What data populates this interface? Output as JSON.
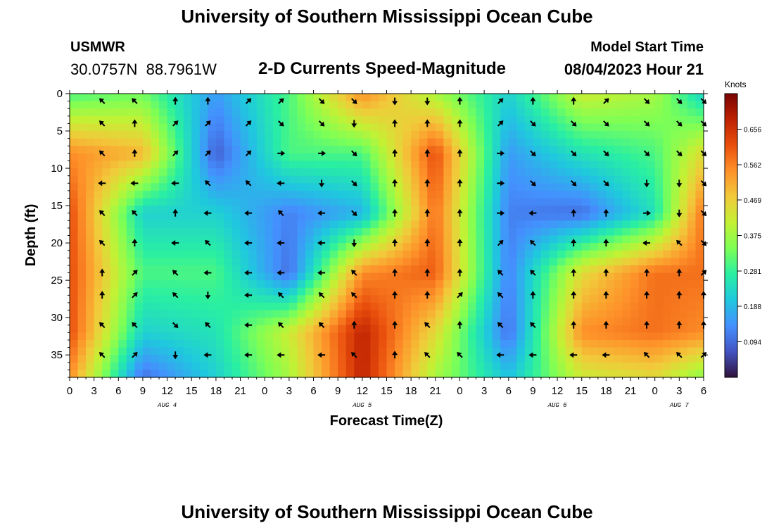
{
  "header": {
    "title": "University of Southern Mississippi Ocean Cube",
    "station": "USMWR",
    "coords": "30.0757N  88.7961W",
    "subtitle": "2-D Currents Speed-Magnitude",
    "model_label": "Model Start Time",
    "model_time": "08/04/2023 Hour 21"
  },
  "footer": {
    "title": "University of Southern Mississippi Ocean Cube"
  },
  "chart_data": {
    "type": "heatmap",
    "title": "2-D Currents Speed-Magnitude",
    "xlabel": "Forecast Time(Z)",
    "ylabel": "Depth (ft)",
    "x_unit": "hours since Aug 4 00Z",
    "xlim": [
      0,
      78
    ],
    "ylim": [
      38,
      0
    ],
    "x_ticks": [
      0,
      3,
      6,
      9,
      12,
      15,
      18,
      21,
      24,
      27,
      30,
      33,
      36,
      39,
      42,
      45,
      48,
      51,
      54,
      57,
      60,
      63,
      66,
      69,
      72,
      75,
      78
    ],
    "x_tick_labels": [
      "0",
      "3",
      "6",
      "9",
      "12",
      "15",
      "18",
      "21",
      "0",
      "3",
      "6",
      "9",
      "12",
      "15",
      "18",
      "21",
      "0",
      "3",
      "6",
      "9",
      "12",
      "15",
      "18",
      "21",
      "0",
      "3",
      "6"
    ],
    "date_labels": [
      {
        "x": 12,
        "text": "AUG 4"
      },
      {
        "x": 36,
        "text": "AUG 5"
      },
      {
        "x": 60,
        "text": "AUG 6"
      },
      {
        "x": 75,
        "text": "AUG 7"
      }
    ],
    "y_ticks": [
      0,
      5,
      10,
      15,
      20,
      25,
      30,
      35
    ],
    "colorbar": {
      "label": "Knots",
      "min": 0.0,
      "max": 0.75,
      "ticks": [
        0.094,
        0.188,
        0.281,
        0.375,
        0.469,
        0.562,
        0.656
      ],
      "tick_labels": [
        "0.094",
        "0.188",
        "0.281",
        "0.375",
        "0.469",
        "0.562",
        "0.656"
      ],
      "colormap": [
        "#30123b",
        "#4454c4",
        "#4490fe",
        "#1fc8de",
        "#29efa2",
        "#7eff55",
        "#c3f134",
        "#f1ca3a",
        "#fe922a",
        "#ea4f0d",
        "#be2102",
        "#7a0403"
      ]
    },
    "grid_x": [
      0,
      9,
      18,
      27,
      36,
      45,
      54,
      63,
      72,
      78
    ],
    "grid_y": [
      0,
      8,
      16,
      24,
      32,
      38
    ],
    "speed_knots": [
      [
        0.3,
        0.33,
        0.15,
        0.3,
        0.55,
        0.38,
        0.22,
        0.42,
        0.38,
        0.22
      ],
      [
        0.55,
        0.5,
        0.08,
        0.3,
        0.3,
        0.62,
        0.15,
        0.25,
        0.3,
        0.45
      ],
      [
        0.62,
        0.22,
        0.22,
        0.12,
        0.18,
        0.58,
        0.12,
        0.1,
        0.25,
        0.58
      ],
      [
        0.62,
        0.3,
        0.3,
        0.1,
        0.55,
        0.6,
        0.12,
        0.45,
        0.58,
        0.58
      ],
      [
        0.62,
        0.22,
        0.25,
        0.42,
        0.68,
        0.45,
        0.1,
        0.55,
        0.58,
        0.55
      ],
      [
        0.55,
        0.1,
        0.22,
        0.38,
        0.68,
        0.38,
        0.2,
        0.42,
        0.45,
        0.35
      ]
    ],
    "vectors": {
      "times": [
        4,
        8,
        13,
        17,
        22,
        26,
        31,
        35,
        40,
        44,
        48,
        53,
        57,
        62,
        66,
        71,
        75,
        78
      ],
      "depths": [
        1,
        4,
        8,
        12,
        16,
        20,
        24,
        27,
        31,
        35
      ],
      "direction_deg": [
        [
          315,
          315,
          0,
          0,
          45,
          45,
          135,
          135,
          180,
          180,
          0,
          45,
          0,
          0,
          45,
          135,
          135,
          135
        ],
        [
          315,
          0,
          45,
          45,
          45,
          135,
          135,
          180,
          0,
          0,
          0,
          45,
          135,
          135,
          135,
          135,
          135,
          135
        ],
        [
          315,
          0,
          45,
          45,
          45,
          90,
          90,
          135,
          0,
          0,
          0,
          90,
          135,
          135,
          135,
          135,
          135,
          135
        ],
        [
          270,
          270,
          270,
          315,
          315,
          270,
          180,
          135,
          0,
          0,
          0,
          90,
          135,
          135,
          135,
          180,
          180,
          135
        ],
        [
          315,
          315,
          0,
          270,
          270,
          315,
          270,
          135,
          0,
          0,
          0,
          90,
          270,
          0,
          0,
          90,
          180,
          135
        ],
        [
          315,
          0,
          270,
          315,
          270,
          270,
          270,
          180,
          0,
          0,
          0,
          45,
          315,
          0,
          0,
          270,
          315,
          135
        ],
        [
          0,
          45,
          315,
          270,
          270,
          270,
          270,
          315,
          0,
          0,
          0,
          315,
          315,
          0,
          0,
          0,
          0,
          45
        ],
        [
          0,
          45,
          315,
          180,
          270,
          315,
          315,
          315,
          0,
          0,
          45,
          315,
          0,
          0,
          0,
          0,
          0,
          0
        ],
        [
          315,
          315,
          135,
          315,
          270,
          315,
          315,
          0,
          0,
          315,
          0,
          315,
          315,
          0,
          0,
          0,
          0,
          0
        ],
        [
          315,
          45,
          180,
          270,
          270,
          270,
          270,
          315,
          0,
          315,
          315,
          270,
          270,
          270,
          270,
          315,
          315,
          45
        ]
      ]
    }
  }
}
